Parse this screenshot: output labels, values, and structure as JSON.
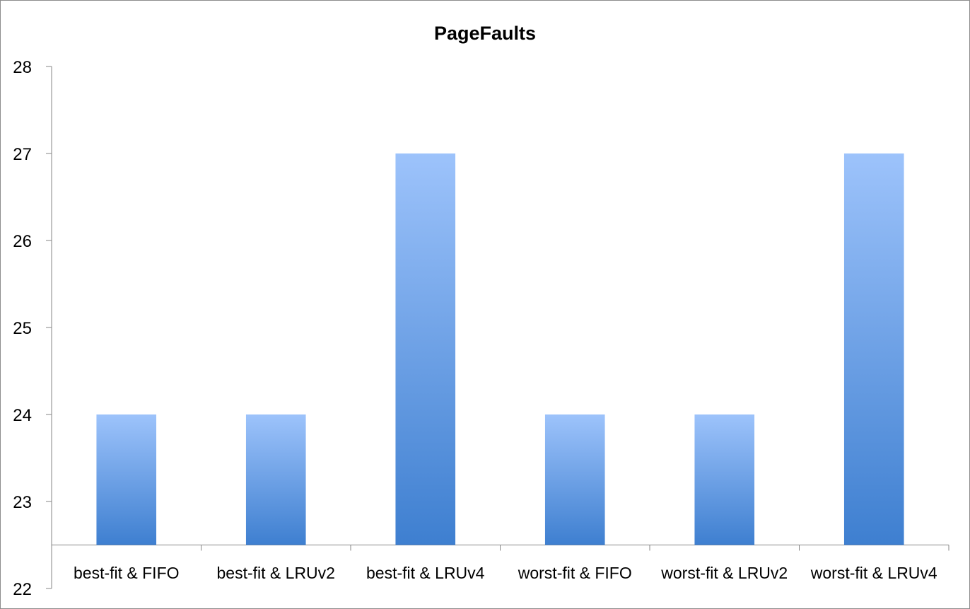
{
  "chart_data": {
    "type": "bar",
    "title": "PageFaults",
    "xlabel": "",
    "ylabel": "",
    "categories": [
      "best-fit & FIFO",
      "best-fit & LRUv2",
      "best-fit & LRUv4",
      "worst-fit & FIFO",
      "worst-fit & LRUv2",
      "worst-fit & LRUv4"
    ],
    "values": [
      24,
      24,
      27,
      24,
      24,
      27
    ],
    "ylim": [
      22,
      28
    ],
    "yticks": [
      22,
      23,
      24,
      25,
      26,
      27,
      28
    ],
    "baseline": 22.5,
    "grid": false,
    "legend": "none",
    "colors": {
      "bar_top": "#9dc3fb",
      "bar_bottom": "#3e7fd0"
    }
  }
}
